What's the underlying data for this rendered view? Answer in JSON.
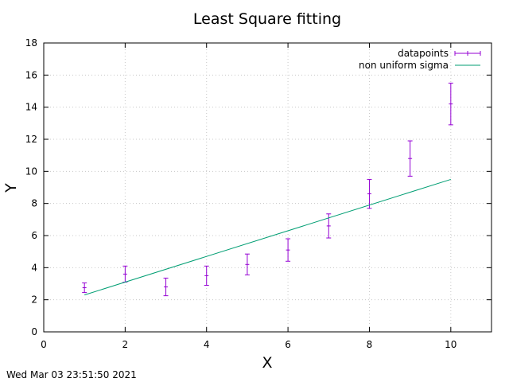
{
  "chart_data": {
    "type": "scatter",
    "title": "Least Square fitting",
    "xlabel": "X",
    "ylabel": "Y",
    "xlim": [
      0,
      11
    ],
    "ylim": [
      0,
      18
    ],
    "xticks": [
      0,
      2,
      4,
      6,
      8,
      10
    ],
    "yticks": [
      0,
      2,
      4,
      6,
      8,
      10,
      12,
      14,
      16,
      18
    ],
    "grid": true,
    "legend_position": "top-right",
    "series": [
      {
        "name": "datapoints",
        "kind": "errorbars",
        "color": "#9400d3",
        "x": [
          1,
          2,
          3,
          4,
          5,
          6,
          7,
          8,
          9,
          10
        ],
        "y": [
          2.75,
          3.6,
          2.8,
          3.5,
          4.2,
          5.1,
          6.6,
          8.6,
          10.8,
          14.2
        ],
        "yerr": [
          0.3,
          0.5,
          0.55,
          0.6,
          0.65,
          0.7,
          0.75,
          0.9,
          1.1,
          1.3
        ]
      },
      {
        "name": "non uniform sigma",
        "kind": "line",
        "color": "#009e73",
        "x": [
          1,
          10
        ],
        "y": [
          2.3,
          9.5
        ]
      }
    ]
  },
  "timestamp": "Wed Mar 03 23:51:50 2021"
}
